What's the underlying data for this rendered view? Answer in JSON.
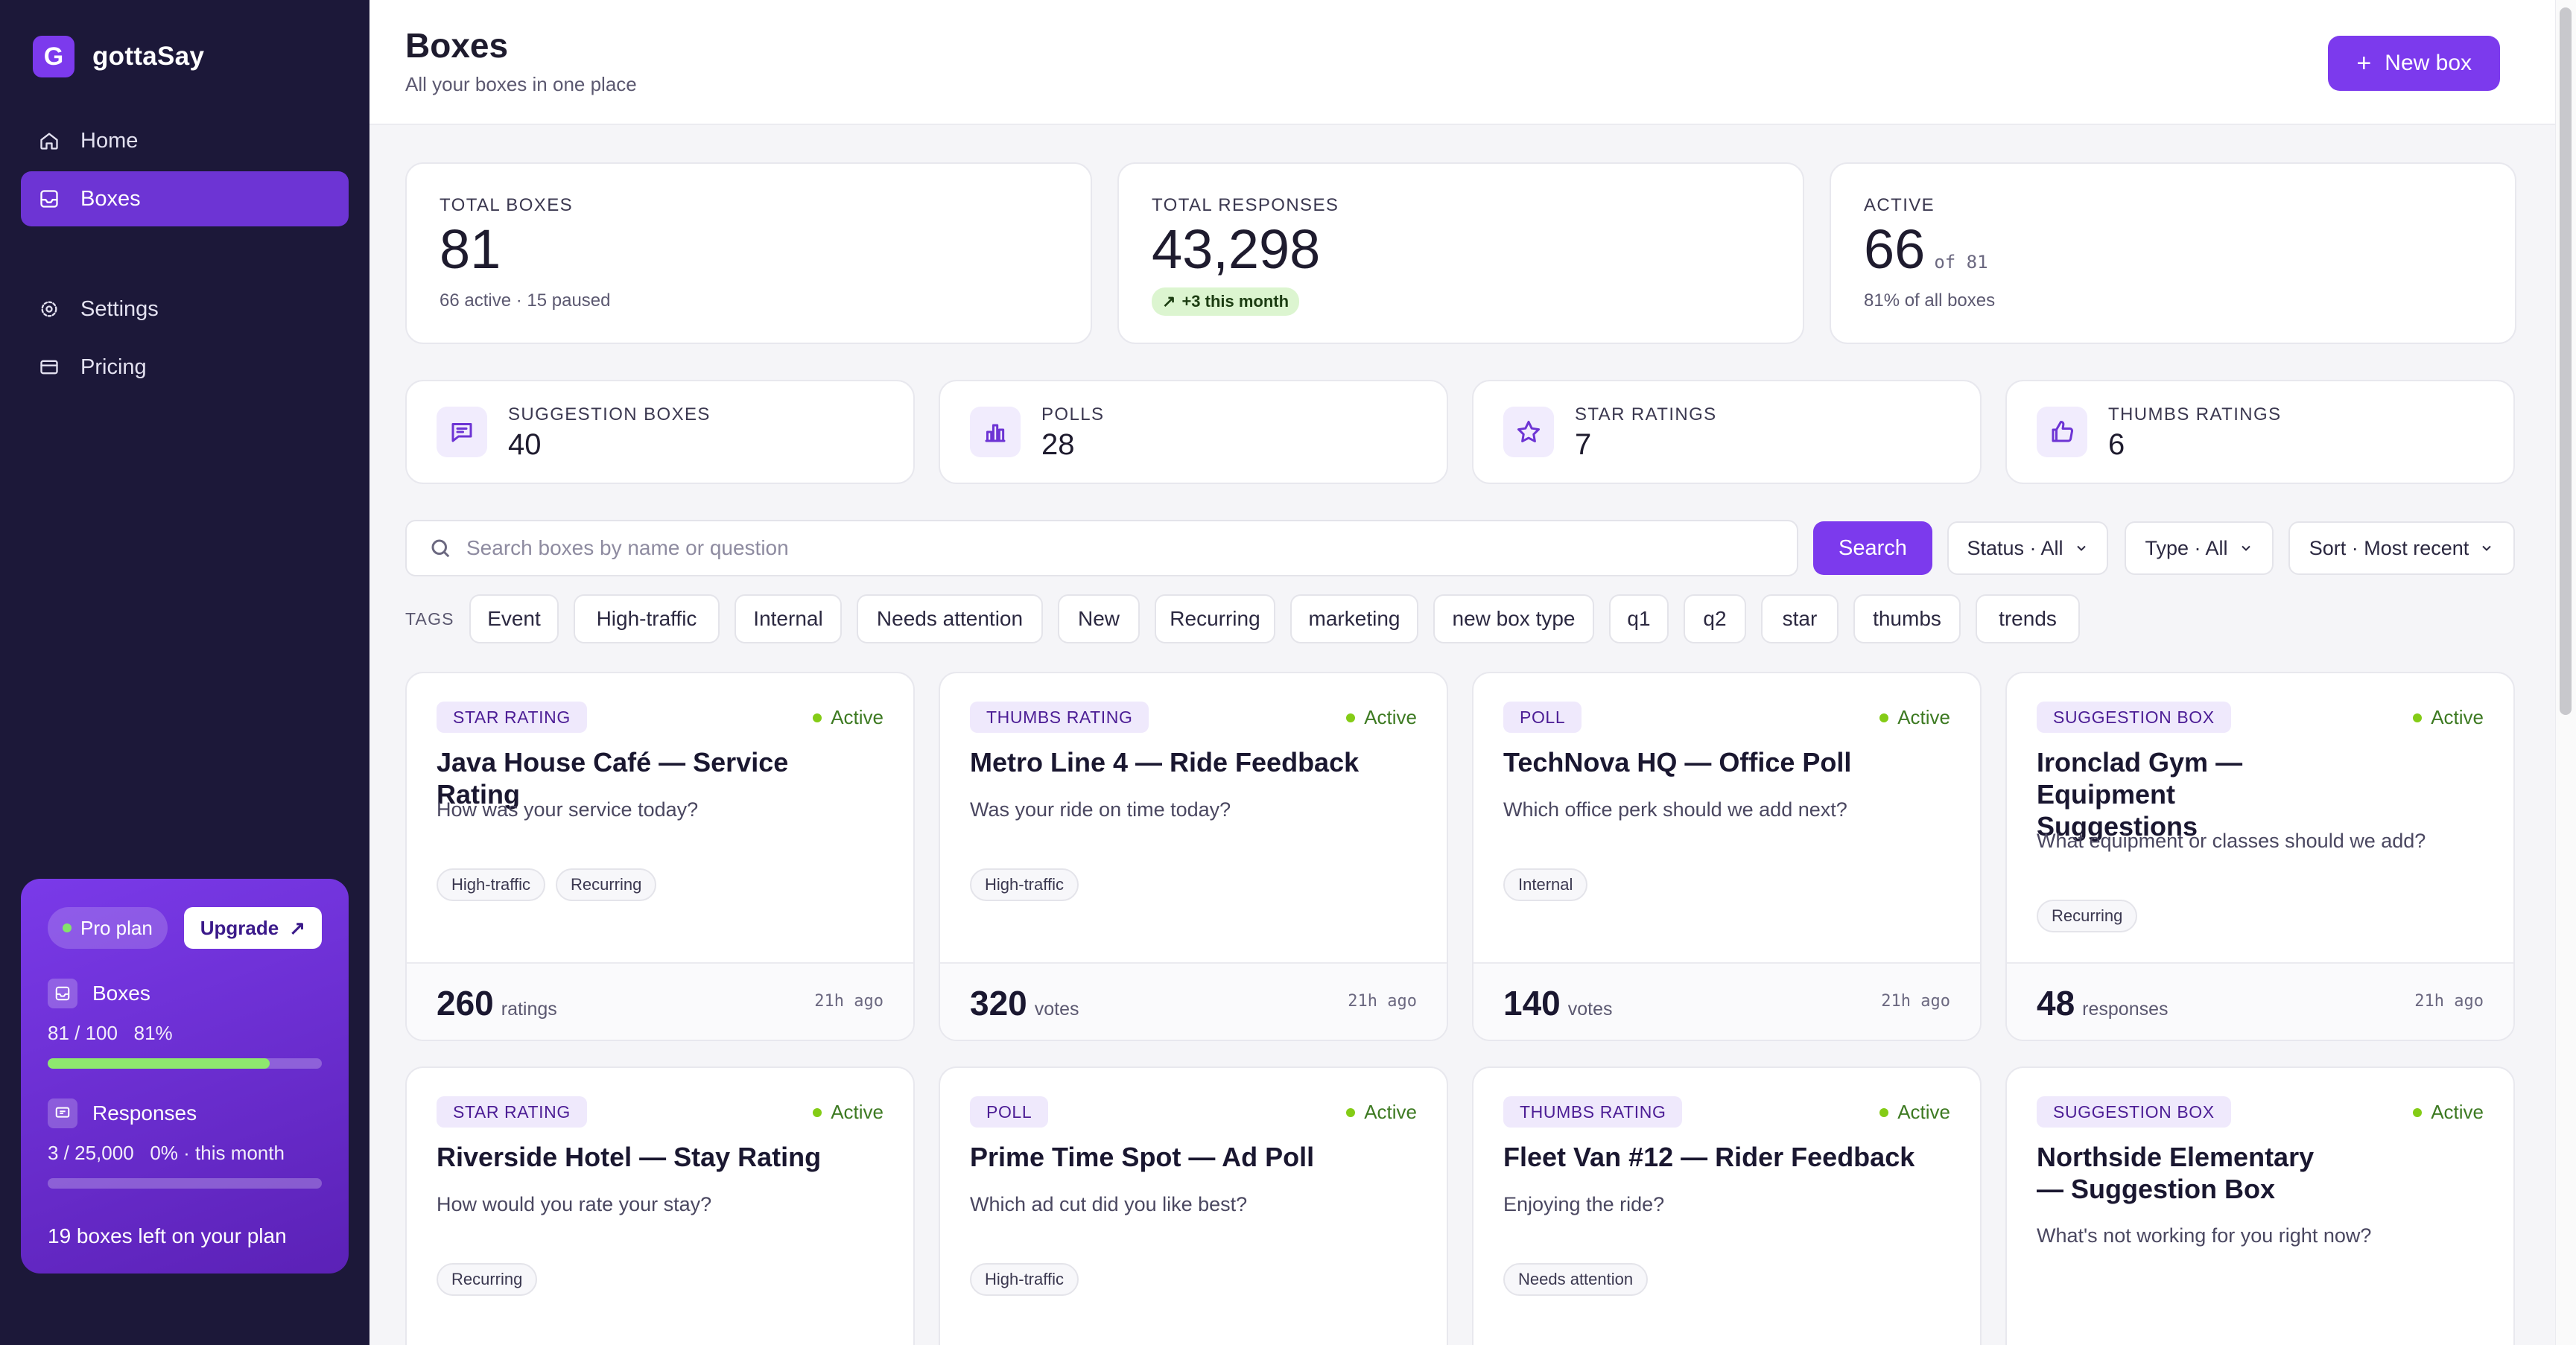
{
  "app": {
    "name": "gottaSay",
    "logo_letter": "G"
  },
  "sidebar": {
    "items": [
      {
        "label": "Home",
        "icon": "home-icon"
      },
      {
        "label": "Boxes",
        "icon": "inbox-icon",
        "active": true
      },
      {
        "label": "Settings",
        "icon": "gear-icon"
      },
      {
        "label": "Pricing",
        "icon": "card-icon"
      }
    ],
    "plan": {
      "badge": "Pro plan",
      "upgrade_label": "Upgrade",
      "boxes_label": "Boxes",
      "boxes_usage": "81 / 100   81%",
      "boxes_fraction": 0.81,
      "responses_label": "Responses",
      "responses_usage": "3 / 25,000   0% · this month",
      "responses_fraction": 0.0,
      "left_text": "19 boxes left on your plan"
    }
  },
  "header": {
    "title": "Boxes",
    "subtitle": "All your boxes in one place",
    "new_button": "New box"
  },
  "stats": [
    {
      "label": "TOTAL BOXES",
      "value": "81",
      "sub": "66 active · 15 paused"
    },
    {
      "label": "TOTAL RESPONSES",
      "value": "43,298",
      "trend": "+3 this month"
    },
    {
      "label": "ACTIVE",
      "value": "66",
      "of": "of 81",
      "sub": "81% of all boxes"
    }
  ],
  "types": [
    {
      "label": "SUGGESTION BOXES",
      "value": "40",
      "icon": "chat-icon"
    },
    {
      "label": "POLLS",
      "value": "28",
      "icon": "bar-chart-icon"
    },
    {
      "label": "STAR RATINGS",
      "value": "7",
      "icon": "star-icon"
    },
    {
      "label": "THUMBS RATINGS",
      "value": "6",
      "icon": "thumbs-up-icon"
    }
  ],
  "search": {
    "placeholder": "Search boxes by name or question",
    "button": "Search"
  },
  "filters": {
    "status": "Status · All",
    "type": "Type · All",
    "sort": "Sort · Most recent"
  },
  "tags_label": "TAGS",
  "tags": [
    "Event",
    "High-traffic",
    "Internal",
    "Needs attention",
    "New",
    "Recurring",
    "marketing",
    "new box type",
    "q1",
    "q2",
    "star",
    "thumbs",
    "trends"
  ],
  "cards": [
    {
      "type": "STAR RATING",
      "status": "Active",
      "title": "Java House Café — Service Rating",
      "question": "How was your service today?",
      "tags": [
        "High-traffic",
        "Recurring"
      ],
      "count": "260",
      "unit": "ratings",
      "ago": "21h ago"
    },
    {
      "type": "THUMBS RATING",
      "status": "Active",
      "title": "Metro Line 4 — Ride Feedback",
      "question": "Was your ride on time today?",
      "tags": [
        "High-traffic"
      ],
      "count": "320",
      "unit": "votes",
      "ago": "21h ago"
    },
    {
      "type": "POLL",
      "status": "Active",
      "title": "TechNova HQ — Office Poll",
      "question": "Which office perk should we add next?",
      "tags": [
        "Internal"
      ],
      "count": "140",
      "unit": "votes",
      "ago": "21h ago"
    },
    {
      "type": "SUGGESTION BOX",
      "status": "Active",
      "title": "Ironclad Gym — Equipment Suggestions",
      "question": "What equipment or classes should we add?",
      "tags": [
        "Recurring"
      ],
      "count": "48",
      "unit": "responses",
      "ago": "21h ago"
    },
    {
      "type": "STAR RATING",
      "status": "Active",
      "title": "Riverside Hotel — Stay Rating",
      "question": "How would you rate your stay?",
      "tags": [
        "Recurring"
      ]
    },
    {
      "type": "POLL",
      "status": "Active",
      "title": "Prime Time Spot — Ad Poll",
      "question": "Which ad cut did you like best?",
      "tags": [
        "High-traffic"
      ]
    },
    {
      "type": "THUMBS RATING",
      "status": "Active",
      "title": "Fleet Van #12 — Rider Feedback",
      "question": "Enjoying the ride?",
      "tags": [
        "Needs attention"
      ]
    },
    {
      "type": "SUGGESTION BOX",
      "status": "Active",
      "title": "Northside Elementary — Suggestion Box",
      "question": "What's not working for you right now?",
      "tags": []
    }
  ],
  "colors": {
    "accent": "#7c3aed",
    "sidebar": "#1c1839",
    "active_green": "#84cc16"
  }
}
